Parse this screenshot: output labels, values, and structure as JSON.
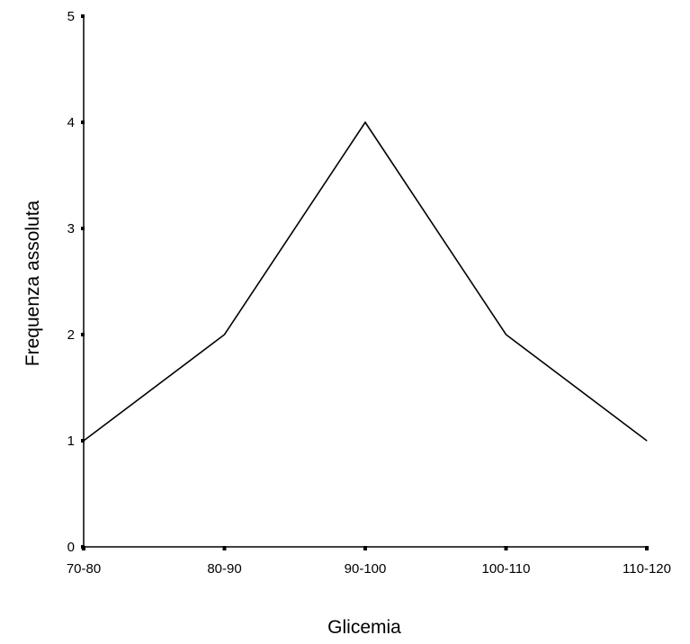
{
  "chart_data": {
    "type": "line",
    "categories": [
      "70-80",
      "80-90",
      "90-100",
      "100-110",
      "110-120"
    ],
    "series": [
      {
        "values": [
          1,
          2,
          4,
          2,
          1
        ]
      }
    ],
    "xlabel": "Glicemia",
    "ylabel": "Frequenza assoluta",
    "ylim": [
      0,
      5
    ],
    "yticks": [
      "0",
      "1",
      "2",
      "3",
      "4",
      "5"
    ],
    "grid": false,
    "colors": {
      "line": "#000000",
      "axis": "#000000"
    }
  }
}
